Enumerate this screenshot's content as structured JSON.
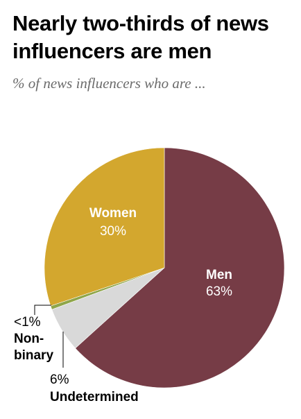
{
  "chart_data": {
    "type": "pie",
    "title": "Nearly two-thirds of news influencers are men",
    "subtitle": "% of news influencers who are ...",
    "slices": [
      {
        "label": "Men",
        "value_label": "63%",
        "value": 63,
        "color": "#763c46"
      },
      {
        "label": "Undetermined",
        "value_label": "6%",
        "value": 6,
        "color": "#d9d9d9"
      },
      {
        "label": "Non-binary",
        "value_label": "<1%",
        "value": 0.5,
        "color": "#8fa64a"
      },
      {
        "label": "Women",
        "value_label": "30%",
        "value": 30,
        "color": "#d3a72e"
      }
    ],
    "legend": "none"
  }
}
